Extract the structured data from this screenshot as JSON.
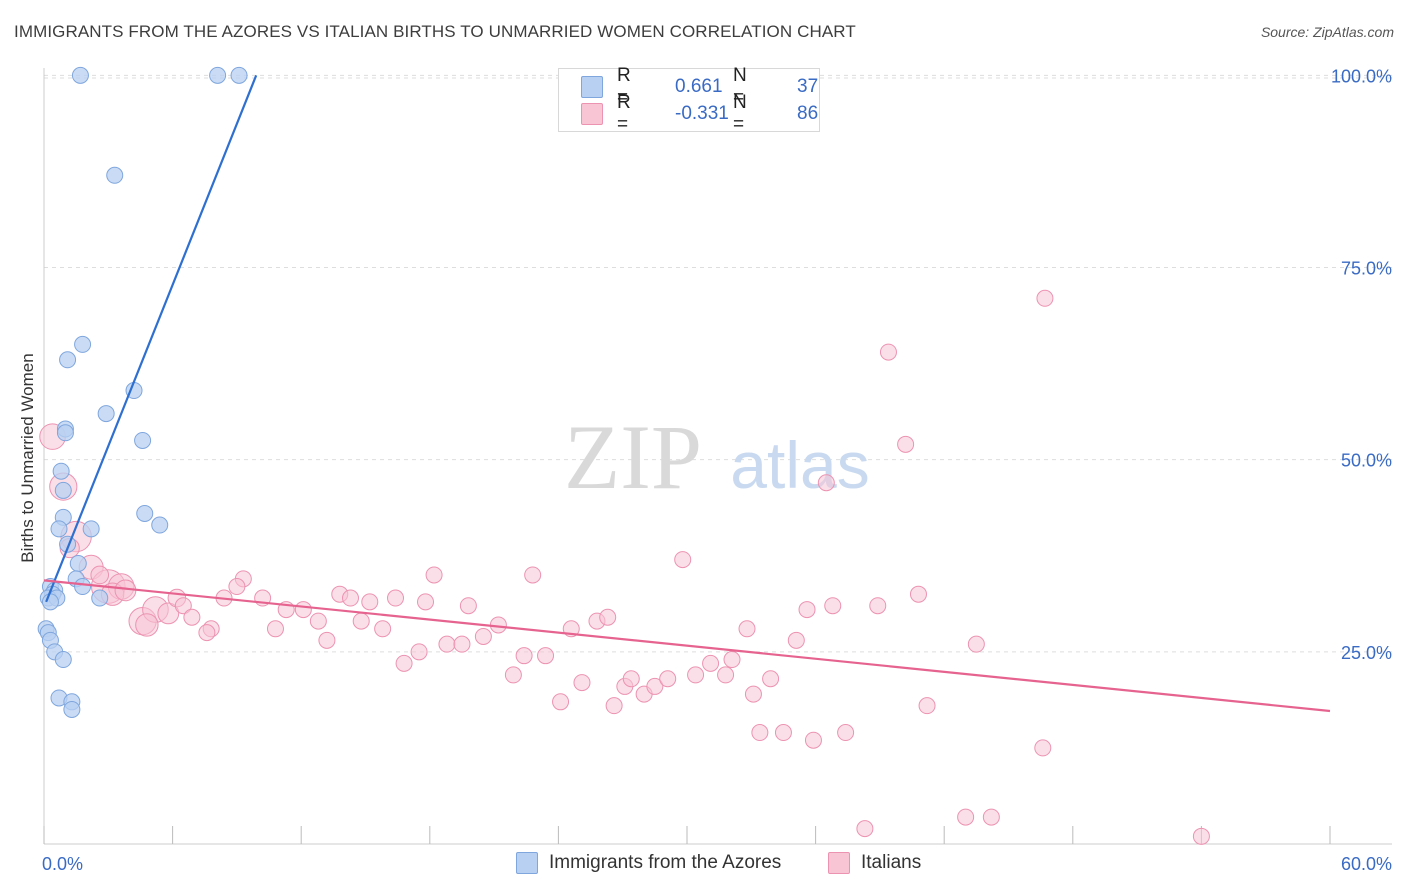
{
  "title": "IMMIGRANTS FROM THE AZORES VS ITALIAN BIRTHS TO UNMARRIED WOMEN CORRELATION CHART",
  "source": "Source: ZipAtlas.com",
  "watermark": {
    "zip": "ZIP",
    "atlas": "atlas"
  },
  "colors": {
    "blue_fill": "#b8d0f2",
    "blue_stroke": "#7fa6dd",
    "blue_line": "#2e6fd0",
    "pink_fill": "#f8c5d5",
    "pink_stroke": "#ec93b2",
    "pink_line": "#e6638f",
    "tick_label": "#3a6bc4",
    "grid": "#dddddd"
  },
  "legend_top": {
    "rows": [
      {
        "r_label": "R =",
        "r_value": "0.661",
        "n_label": "N =",
        "n_value": "37"
      },
      {
        "r_label": "R =",
        "r_value": "-0.331",
        "n_label": "N =",
        "n_value": "86"
      }
    ]
  },
  "legend_bottom": {
    "series1": "Immigrants from the Azores",
    "series2": "Italians"
  },
  "chart_data": {
    "type": "scatter",
    "title": "IMMIGRANTS FROM THE AZORES VS ITALIAN BIRTHS TO UNMARRIED WOMEN CORRELATION CHART",
    "xlabel": "",
    "ylabel": "Births to Unmarried Women",
    "xlim": [
      0,
      60
    ],
    "ylim": [
      0,
      102
    ],
    "x_tick_labels": [
      "0.0%",
      "60.0%"
    ],
    "y_ticks": [
      25,
      50,
      75,
      100
    ],
    "y_tick_labels": [
      "25.0%",
      "50.0%",
      "75.0%",
      "100.0%"
    ],
    "grid": true,
    "series": [
      {
        "name": "Immigrants from the Azores",
        "r": 0.661,
        "n": 37,
        "trend": {
          "x": [
            0.1,
            9.9
          ],
          "y": [
            31.5,
            100.0
          ]
        },
        "points": [
          [
            1.7,
            100,
            1
          ],
          [
            8.1,
            100,
            1
          ],
          [
            9.1,
            100,
            1
          ],
          [
            3.3,
            87,
            1
          ],
          [
            1.8,
            65,
            1
          ],
          [
            1.1,
            63,
            1
          ],
          [
            4.2,
            59,
            1
          ],
          [
            2.9,
            56,
            1
          ],
          [
            1.0,
            54,
            1
          ],
          [
            1.0,
            53.5,
            1
          ],
          [
            4.6,
            52.5,
            1
          ],
          [
            0.8,
            48.5,
            1
          ],
          [
            0.9,
            46,
            1
          ],
          [
            4.7,
            43,
            1
          ],
          [
            5.4,
            41.5,
            1
          ],
          [
            0.9,
            42.5,
            1
          ],
          [
            0.7,
            41,
            1
          ],
          [
            2.2,
            41,
            1
          ],
          [
            1.1,
            39,
            1
          ],
          [
            1.6,
            36.5,
            1
          ],
          [
            1.5,
            34.5,
            1
          ],
          [
            1.8,
            33.5,
            1
          ],
          [
            0.3,
            33.5,
            1
          ],
          [
            0.5,
            33,
            1
          ],
          [
            0.4,
            32.5,
            1
          ],
          [
            0.2,
            32,
            1
          ],
          [
            0.6,
            32,
            1
          ],
          [
            0.3,
            31.5,
            1
          ],
          [
            2.6,
            32,
            1
          ],
          [
            0.1,
            28,
            1
          ],
          [
            0.2,
            27.5,
            1
          ],
          [
            0.3,
            26.5,
            1
          ],
          [
            0.5,
            25,
            1
          ],
          [
            0.9,
            24,
            1
          ],
          [
            0.7,
            19,
            1
          ],
          [
            1.3,
            18.5,
            1
          ],
          [
            1.3,
            17.5,
            1
          ]
        ]
      },
      {
        "name": "Italians",
        "r": -0.331,
        "n": 86,
        "trend": {
          "x": [
            0,
            60
          ],
          "y": [
            34.3,
            17.3
          ]
        },
        "points": [
          [
            0.4,
            53,
            1.6
          ],
          [
            0.9,
            46.5,
            1.7
          ],
          [
            1.5,
            40,
            1.9
          ],
          [
            2.2,
            36,
            1.5
          ],
          [
            3.0,
            33.5,
            2.1
          ],
          [
            3.6,
            33.5,
            1.6
          ],
          [
            3.2,
            32.5,
            1.4
          ],
          [
            4.6,
            29,
            1.7
          ],
          [
            5.2,
            30.5,
            1.6
          ],
          [
            5.8,
            30,
            1.3
          ],
          [
            6.2,
            32,
            1.1
          ],
          [
            6.5,
            31,
            1
          ],
          [
            7.8,
            28,
            1
          ],
          [
            7.6,
            27.5,
            1
          ],
          [
            8.4,
            32,
            1
          ],
          [
            9.3,
            34.5,
            1
          ],
          [
            9.0,
            33.5,
            1
          ],
          [
            10.2,
            32,
            1
          ],
          [
            10.8,
            28,
            1
          ],
          [
            11.3,
            30.5,
            1
          ],
          [
            12.1,
            30.5,
            1
          ],
          [
            12.8,
            29,
            1
          ],
          [
            13.2,
            26.5,
            1
          ],
          [
            13.8,
            32.5,
            1
          ],
          [
            14.3,
            32,
            1
          ],
          [
            14.8,
            29,
            1
          ],
          [
            15.2,
            31.5,
            1
          ],
          [
            15.8,
            28,
            1
          ],
          [
            16.4,
            32,
            1
          ],
          [
            16.8,
            23.5,
            1
          ],
          [
            17.5,
            25,
            1
          ],
          [
            17.8,
            31.5,
            1
          ],
          [
            18.2,
            35,
            1
          ],
          [
            18.8,
            26,
            1
          ],
          [
            19.5,
            26,
            1
          ],
          [
            19.8,
            31,
            1
          ],
          [
            20.5,
            27,
            1
          ],
          [
            21.2,
            28.5,
            1
          ],
          [
            21.9,
            22,
            1
          ],
          [
            22.4,
            24.5,
            1
          ],
          [
            22.8,
            35,
            1
          ],
          [
            23.4,
            24.5,
            1
          ],
          [
            24.1,
            18.5,
            1
          ],
          [
            24.6,
            28,
            1
          ],
          [
            25.1,
            21,
            1
          ],
          [
            25.8,
            29,
            1
          ],
          [
            26.3,
            29.5,
            1
          ],
          [
            26.6,
            18,
            1
          ],
          [
            27.1,
            20.5,
            1
          ],
          [
            27.4,
            21.5,
            1
          ],
          [
            28.0,
            19.5,
            1
          ],
          [
            28.5,
            20.5,
            1
          ],
          [
            29.1,
            21.5,
            1
          ],
          [
            29.8,
            37,
            1
          ],
          [
            30.4,
            22,
            1
          ],
          [
            31.1,
            23.5,
            1
          ],
          [
            31.8,
            22,
            1
          ],
          [
            32.1,
            24,
            1
          ],
          [
            32.8,
            28,
            1
          ],
          [
            33.1,
            19.5,
            1
          ],
          [
            33.4,
            14.5,
            1
          ],
          [
            33.9,
            21.5,
            1
          ],
          [
            34.5,
            14.5,
            1
          ],
          [
            35.1,
            26.5,
            1
          ],
          [
            35.6,
            30.5,
            1
          ],
          [
            35.9,
            13.5,
            1
          ],
          [
            36.8,
            31,
            1
          ],
          [
            37.4,
            14.5,
            1
          ],
          [
            38.3,
            2,
            1
          ],
          [
            38.9,
            31,
            1
          ],
          [
            39.4,
            64,
            1
          ],
          [
            40.2,
            52,
            1
          ],
          [
            40.8,
            32.5,
            1
          ],
          [
            41.2,
            18,
            1
          ],
          [
            36.5,
            47,
            1
          ],
          [
            46.7,
            71,
            1
          ],
          [
            43.5,
            26,
            1
          ],
          [
            46.6,
            12.5,
            1
          ],
          [
            43.0,
            3.5,
            1
          ],
          [
            44.2,
            3.5,
            1
          ],
          [
            54.0,
            1,
            1
          ],
          [
            3.8,
            33,
            1.3
          ],
          [
            4.8,
            28.5,
            1.4
          ],
          [
            1.2,
            38.5,
            1.2
          ],
          [
            2.6,
            35,
            1.1
          ],
          [
            6.9,
            29.5,
            1
          ]
        ]
      }
    ]
  }
}
